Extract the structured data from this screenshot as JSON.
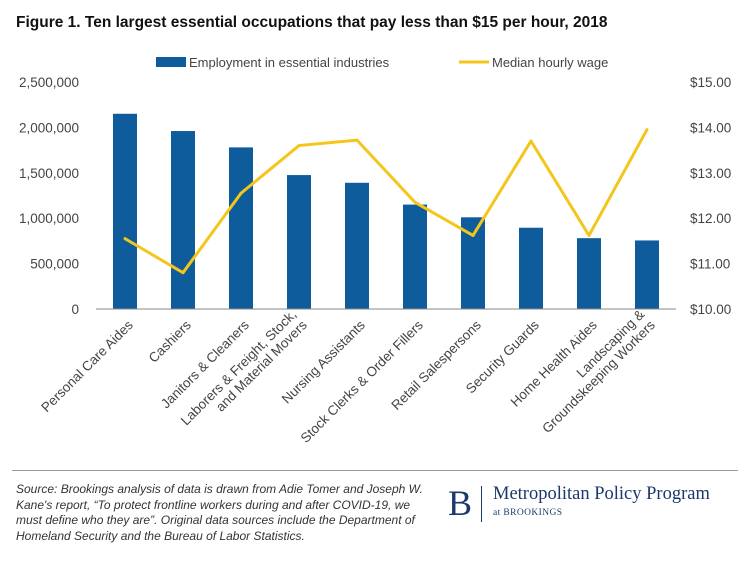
{
  "title": "Figure 1. Ten largest essential occupations that pay less than $15 per hour, 2018",
  "source_note": "Source: Brookings analysis of data is drawn from Adie Tomer and Joseph W. Kane's report, “To protect frontline workers during and after COVID-19, we must define who they are”. Original data sources include the Department of Homeland Security and the Bureau of Labor Statistics.",
  "logo": {
    "letter": "B",
    "name": "Metropolitan Policy Program",
    "sub": "at BROOKINGS"
  },
  "colors": {
    "bar": "#0f5c9c",
    "line": "#f4c51b",
    "axis": "#555555",
    "text": "#444444"
  },
  "chart_data": {
    "type": "bar+line",
    "categories": [
      "Personal Care Aides",
      "Cashiers",
      "Janitors & Cleaners",
      "Laborers & Freight, Stock, and Material Movers",
      "Nursing Assistants",
      "Stock Clerks & Order Fillers",
      "Retail Salespersons",
      "Security Guards",
      "Home Health Aides",
      "Landscaping & Groundskeeping Workers"
    ],
    "category_label_lines": [
      [
        "Personal Care Aides"
      ],
      [
        "Cashiers"
      ],
      [
        "Janitors & Cleaners"
      ],
      [
        "Laborers & Freight, Stock,",
        "and Material Movers"
      ],
      [
        "Nursing Assistants"
      ],
      [
        "Stock Clerks & Order Fillers"
      ],
      [
        "Retail Salespersons"
      ],
      [
        "Security Guards"
      ],
      [
        "Home Health Aides"
      ],
      [
        "Landscaping &",
        "Groundskeeping Workers"
      ]
    ],
    "series": [
      {
        "name": "Employment in essential industries",
        "kind": "bar",
        "axis": "left",
        "values": [
          2150000,
          1960000,
          1780000,
          1475000,
          1390000,
          1150000,
          1010000,
          895000,
          780000,
          755000
        ]
      },
      {
        "name": "Median hourly wage",
        "kind": "line",
        "axis": "right",
        "values": [
          11.55,
          10.8,
          12.55,
          13.6,
          13.72,
          12.35,
          11.62,
          13.7,
          11.62,
          13.95
        ]
      }
    ],
    "y_left": {
      "min": 0,
      "max": 2500000,
      "ticks": [
        "0",
        "500,000",
        "1,000,000",
        "1,500,000",
        "2,000,000",
        "2,500,000"
      ]
    },
    "y_right": {
      "min": 10,
      "max": 15,
      "ticks": [
        "$10.00",
        "$11.00",
        "$12.00",
        "$13.00",
        "$14.00",
        "$15.00"
      ]
    },
    "legend_position": "top",
    "grid": false
  }
}
